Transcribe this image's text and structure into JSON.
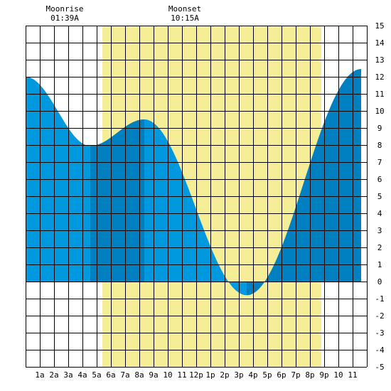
{
  "chart_data": {
    "type": "area",
    "title": "",
    "xlabel": "",
    "ylabel": "",
    "x_ticks": [
      "1a",
      "2a",
      "3a",
      "4a",
      "5a",
      "6a",
      "7a",
      "8a",
      "9a",
      "10",
      "11",
      "12p",
      "1p",
      "2p",
      "3p",
      "4p",
      "5p",
      "6p",
      "7p",
      "8p",
      "9p",
      "10",
      "11"
    ],
    "y_ticks": [
      15,
      14,
      13,
      12,
      11,
      10,
      9,
      8,
      7,
      6,
      5,
      4,
      3,
      2,
      1,
      0,
      -1,
      -2,
      -3,
      -4,
      -5
    ],
    "xlim_hours": [
      0,
      24
    ],
    "ylim": [
      -5,
      15
    ],
    "grid": true,
    "daylight_hours": [
      5.4,
      20.8
    ],
    "moonrise": {
      "label": "Moonrise",
      "time": "01:39A"
    },
    "moonset": {
      "label": "Moonset",
      "time": "10:15A"
    },
    "tide_extremes": [
      {
        "hour": 0.0,
        "height": 12.0
      },
      {
        "hour": 4.55,
        "height": 7.95
      },
      {
        "hour": 8.35,
        "height": 9.5
      },
      {
        "hour": 15.55,
        "height": -0.8
      },
      {
        "hour": 23.6,
        "height": 12.45
      }
    ],
    "dark_bands_hours": [
      [
        4.55,
        8.35
      ],
      [
        15.55,
        23.6
      ]
    ],
    "colors": {
      "tide_light": "#0099e0",
      "tide_dark": "#0080c0",
      "daylight": "#f5ee96",
      "grid": "#000000",
      "background": "#ffffff"
    }
  }
}
